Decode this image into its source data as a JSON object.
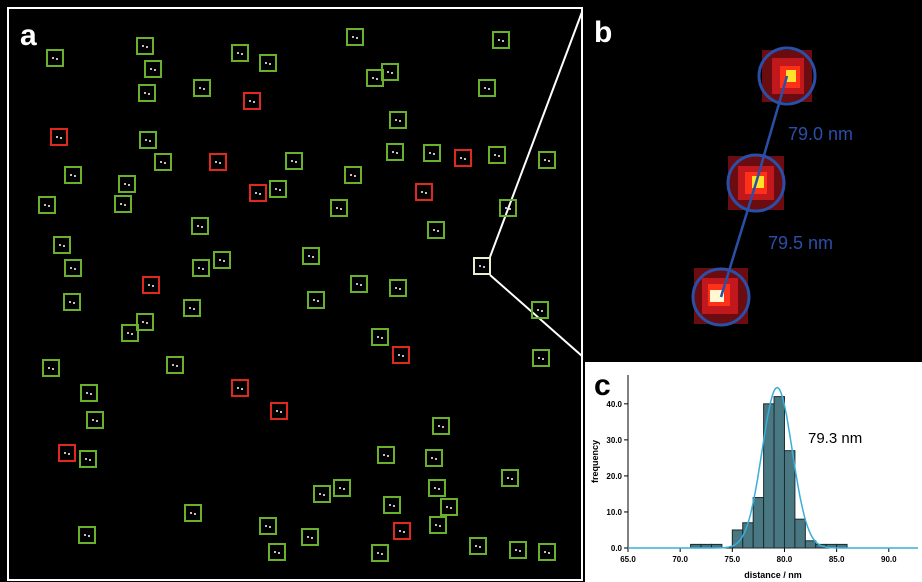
{
  "panels": {
    "a": {
      "label": "a"
    },
    "b": {
      "label": "b",
      "annotations": [
        "79.0 nm",
        "79.5 nm"
      ]
    }
  },
  "chart_data": {
    "type": "histogram",
    "panel_label": "c",
    "x_label": "distance / nm",
    "y_label": "frequency",
    "annotation": "79.3 nm",
    "bins": [
      71,
      72,
      73,
      74,
      75,
      76,
      77,
      78,
      79,
      80,
      81,
      82,
      83,
      84,
      85,
      86
    ],
    "counts": [
      1,
      1,
      1,
      0,
      5,
      7,
      14,
      40,
      42,
      27,
      8,
      2,
      1,
      1,
      1
    ],
    "color": "#4a7882",
    "fit": {
      "mean": 79.3,
      "sigma": 1.45,
      "peak": 44.5,
      "color": "#3aaed8"
    },
    "xlim": [
      65,
      92.8
    ],
    "ylim": [
      0,
      48
    ],
    "xticks": [
      {
        "value": 65,
        "label": "65.0"
      },
      {
        "value": 70,
        "label": "70.0"
      },
      {
        "value": 75,
        "label": "75.0"
      },
      {
        "value": 80,
        "label": "80.0"
      },
      {
        "value": 85,
        "label": "85.0"
      },
      {
        "value": 90,
        "label": "90.0"
      }
    ],
    "yticks": [
      {
        "value": 0,
        "label": "0.0"
      },
      {
        "value": 10,
        "label": "10.0"
      },
      {
        "value": 20,
        "label": "20.0"
      },
      {
        "value": 30,
        "label": "30.0"
      },
      {
        "value": 40,
        "label": "40.0"
      }
    ]
  }
}
